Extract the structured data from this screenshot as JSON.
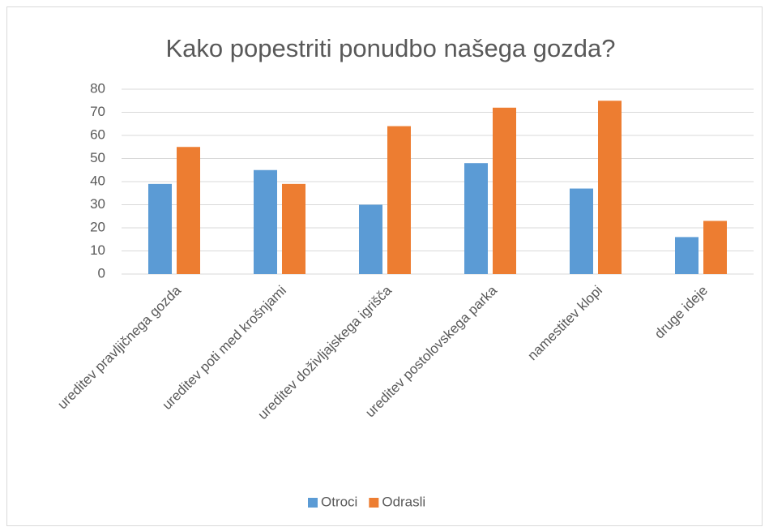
{
  "chart_data": {
    "type": "bar",
    "title": "Kako popestriti ponudbo našega gozda?",
    "categories": [
      "ureditev pravljičnega gozda",
      "ureditev poti med krošnjami",
      "ureditev doživljajskega igrišča",
      "ureditev postolovskega parka",
      "namestitev klopi",
      "druge ideje"
    ],
    "series": [
      {
        "name": "Otroci",
        "color": "#5b9bd5",
        "values": [
          39,
          45,
          30,
          48,
          37,
          16
        ]
      },
      {
        "name": "Odrasli",
        "color": "#ed7d31",
        "values": [
          55,
          39,
          64,
          72,
          75,
          23
        ]
      }
    ],
    "ylim": [
      0,
      80
    ],
    "yticks": [
      0,
      10,
      20,
      30,
      40,
      50,
      60,
      70,
      80
    ],
    "grid": true,
    "legend": "bottom"
  }
}
